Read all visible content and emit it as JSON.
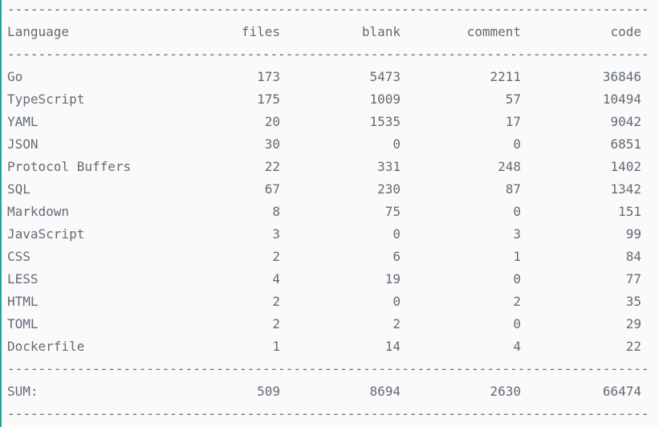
{
  "colors": {
    "background": "#fafafa",
    "text": "#616b76",
    "accent_bar": "#19a89b"
  },
  "rule_text": "---------------------------------------------------------------------------------------------------",
  "header": {
    "language": "Language",
    "files": "files",
    "blank": "blank",
    "comment": "comment",
    "code": "code"
  },
  "rows": [
    {
      "language": "Go",
      "files": "173",
      "blank": "5473",
      "comment": "2211",
      "code": "36846"
    },
    {
      "language": "TypeScript",
      "files": "175",
      "blank": "1009",
      "comment": "57",
      "code": "10494"
    },
    {
      "language": "YAML",
      "files": "20",
      "blank": "1535",
      "comment": "17",
      "code": "9042"
    },
    {
      "language": "JSON",
      "files": "30",
      "blank": "0",
      "comment": "0",
      "code": "6851"
    },
    {
      "language": "Protocol Buffers",
      "files": "22",
      "blank": "331",
      "comment": "248",
      "code": "1402"
    },
    {
      "language": "SQL",
      "files": "67",
      "blank": "230",
      "comment": "87",
      "code": "1342"
    },
    {
      "language": "Markdown",
      "files": "8",
      "blank": "75",
      "comment": "0",
      "code": "151"
    },
    {
      "language": "JavaScript",
      "files": "3",
      "blank": "0",
      "comment": "3",
      "code": "99"
    },
    {
      "language": "CSS",
      "files": "2",
      "blank": "6",
      "comment": "1",
      "code": "84"
    },
    {
      "language": "LESS",
      "files": "4",
      "blank": "19",
      "comment": "0",
      "code": "77"
    },
    {
      "language": "HTML",
      "files": "2",
      "blank": "0",
      "comment": "2",
      "code": "35"
    },
    {
      "language": "TOML",
      "files": "2",
      "blank": "2",
      "comment": "0",
      "code": "29"
    },
    {
      "language": "Dockerfile",
      "files": "1",
      "blank": "14",
      "comment": "4",
      "code": "22"
    }
  ],
  "sum": {
    "language": "SUM:",
    "files": "509",
    "blank": "8694",
    "comment": "2630",
    "code": "66474"
  }
}
